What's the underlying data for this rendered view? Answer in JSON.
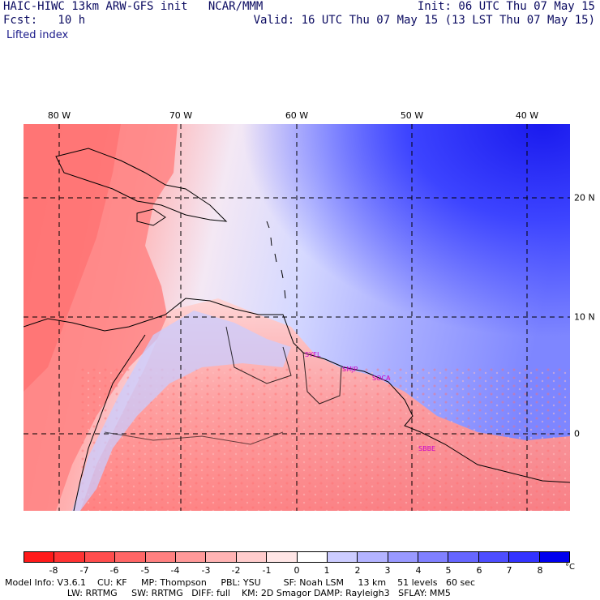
{
  "header": {
    "model_line": "HAIC-HIWC 13km ARW-GFS init   NCAR/MMM",
    "forecast_line": "Fcst:   10 h",
    "init_line": "Init: 06 UTC Thu 07 May 15",
    "valid_line": "Valid: 16 UTC Thu 07 May 15 (13 LST Thu 07 May 15)",
    "field_name": "Lifted index"
  },
  "map": {
    "lon_labels": [
      "80 W",
      "70 W",
      "60 W",
      "50 W",
      "40 W"
    ],
    "lat_labels": [
      "20 N",
      "10 N",
      "0"
    ],
    "stations": [
      "SYEL",
      "SMJP",
      "SOCA",
      "SBBE"
    ]
  },
  "colorbar": {
    "unit": "°C",
    "tick_labels": [
      "-8",
      "-7",
      "-6",
      "-5",
      "-4",
      "-3",
      "-2",
      "-1",
      "0",
      "1",
      "2",
      "3",
      "4",
      "5",
      "6",
      "7",
      "8"
    ],
    "colors": [
      "#ff1a1a",
      "#ff3333",
      "#ff4d4d",
      "#ff6666",
      "#ff8080",
      "#ff9999",
      "#ffb3b3",
      "#ffcccc",
      "#ffe6e6",
      "#ffffff",
      "#ccccff",
      "#b3b3ff",
      "#9999ff",
      "#8080ff",
      "#6666ff",
      "#4d4dff",
      "#3333ff",
      "#0000ee"
    ]
  },
  "footer": {
    "line1": "Model Info: V3.6.1    CU: KF     MP: Thompson     PBL: YSU        SF: Noah LSM     13 km    51 levels   60 sec",
    "line2": "                      LW: RRTMG     SW: RRTMG   DIFF: full    KM: 2D Smagor DAMP: Rayleigh3   SFLAY: MM5"
  }
}
